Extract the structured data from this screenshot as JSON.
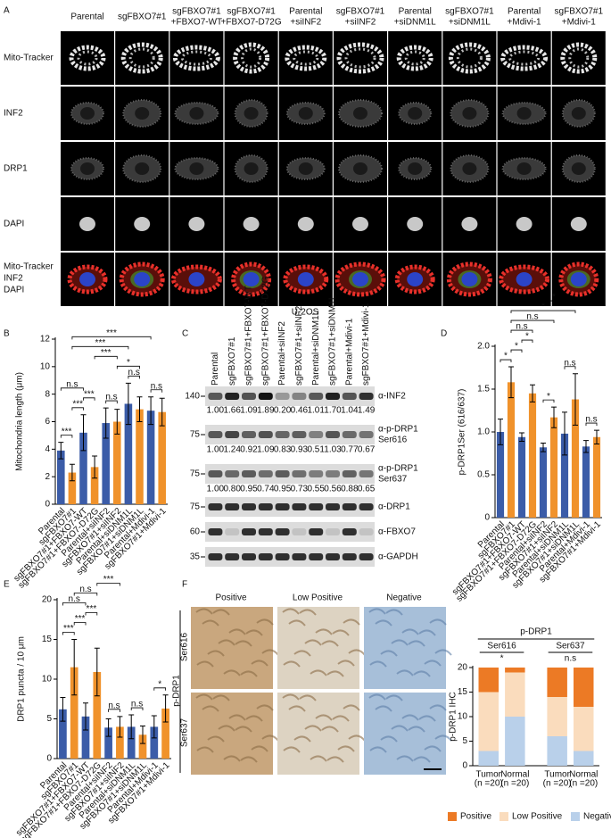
{
  "panels": [
    "A",
    "B",
    "C",
    "D",
    "E",
    "F"
  ],
  "figure_a": {
    "columns": [
      [
        "Parental"
      ],
      [
        "sgFBXO7#1"
      ],
      [
        "sgFBXO7#1",
        "+FBXO7-WT"
      ],
      [
        "sgFBXO7#1",
        "+FBXO7-D72G"
      ],
      [
        "Parental",
        "+siINF2"
      ],
      [
        "sgFBXO7#1",
        "+siINF2"
      ],
      [
        "Parental",
        "+siDNM1L"
      ],
      [
        "sgFBXO7#1",
        "+siDNM1L"
      ],
      [
        "Parental",
        "+Mdivi-1"
      ],
      [
        "sgFBXO7#1",
        "+Mdivi-1"
      ]
    ],
    "rows": [
      "Mito-Tracker",
      "INF2",
      "DRP1",
      "DAPI"
    ],
    "merge_labels": [
      {
        "text": "Mito-Tracker",
        "color": "#e8302a"
      },
      {
        "text": "INF2",
        "color": "#3fa535"
      },
      {
        "text": "DAPI",
        "color": "#2b44c8"
      }
    ],
    "caption": "U-2OS"
  },
  "blot": {
    "lanes": [
      "Parental",
      "sgFBXO7#1",
      "sgFBXO7#1+FBXO7-WT",
      "sgFBXO7#1+FBXO7-D72G",
      "Parental+siINF2",
      "sgFBXO7#1+siINF2",
      "Parental+siDNM1L",
      "sgFBXO7#1+siDNM1L",
      "Parental+Mdivi-1",
      "sgFBXO7#1+Mdivi-1"
    ],
    "rows": [
      {
        "label": [
          "α-INF2"
        ],
        "marker": "140",
        "quant": [
          "1.00",
          "1.66",
          "1.09",
          "1.89",
          "0.20",
          "0.46",
          "1.01",
          "1.70",
          "1.04",
          "1.49"
        ]
      },
      {
        "label": [
          "α-p-DRP1",
          "Ser616"
        ],
        "marker": "75",
        "quant": [
          "1.00",
          "1.24",
          "0.92",
          "1.09",
          "0.83",
          "0.93",
          "0.51",
          "1.03",
          "0.77",
          "0.67"
        ]
      },
      {
        "label": [
          "α-p-DRP1",
          "Ser637"
        ],
        "marker": "75",
        "quant": [
          "1.00",
          "0.80",
          "0.95",
          "0.74",
          "0.95",
          "0.73",
          "0.55",
          "0.56",
          "0.88",
          "0.65"
        ]
      },
      {
        "label": [
          "α-DRP1"
        ],
        "marker": "75"
      },
      {
        "label": [
          "α-FBXO7"
        ],
        "marker": "60"
      },
      {
        "label": [
          "α-GAPDH"
        ],
        "marker": "35"
      }
    ]
  },
  "ihc": {
    "columns": [
      "Positive",
      "Low Positive",
      "Negative"
    ],
    "rows": [
      "Ser616",
      "Ser637"
    ],
    "group": "p-DRP1"
  },
  "chart_data": [
    {
      "type": "bar",
      "ylabel": "Mitochondria length (μm)",
      "categories": [
        "Parental",
        "sgFBXO7#1",
        "sgFBXO7#1+FBXO7-WT",
        "sgFBXO7#1+FBXO7-D72G",
        "Parental+siINF2",
        "sgFBXO7#1+siINF2",
        "Parental+siDNM1L",
        "sgFBXO7#1+siDNM1L",
        "Parental+Mdivi-1",
        "sgFBXO7#1+Mdivi-1"
      ],
      "values": [
        3.9,
        2.3,
        5.2,
        2.7,
        5.9,
        6.0,
        7.3,
        6.9,
        6.8,
        6.7
      ],
      "errors": [
        0.6,
        0.6,
        1.3,
        0.8,
        1.1,
        0.9,
        1.5,
        0.9,
        1.0,
        1.0
      ],
      "bar_colors": [
        "#3b5ca8",
        "#f0922b",
        "#3b5ca8",
        "#f0922b",
        "#3b5ca8",
        "#f0922b",
        "#3b5ca8",
        "#f0922b",
        "#3b5ca8",
        "#f0922b"
      ],
      "ylim": [
        0,
        12
      ],
      "yticks": [
        0,
        2,
        4,
        6,
        8,
        10,
        12
      ],
      "annotations": [
        {
          "text": "***",
          "from": 0,
          "to": 1
        },
        {
          "text": "***",
          "from": 1,
          "to": 2
        },
        {
          "text": "***",
          "from": 2,
          "to": 3
        },
        {
          "text": "n.s",
          "from": 4,
          "to": 5
        },
        {
          "text": "n.s",
          "from": 6,
          "to": 7
        },
        {
          "text": "n.s",
          "from": 8,
          "to": 9
        },
        {
          "text": "n.s",
          "from": 0,
          "to": 2
        },
        {
          "text": "*",
          "from": 5,
          "to": 7
        },
        {
          "text": "***",
          "from": 3,
          "to": 5
        },
        {
          "text": "***",
          "from": 1,
          "to": 6
        },
        {
          "text": "***",
          "from": 1,
          "to": 8
        }
      ]
    },
    {
      "type": "bar",
      "ylabel": "p-DRP1Ser (616/637)",
      "categories": [
        "Parental",
        "sgFBXO7#1",
        "sgFBXO7#1+FBXO7-WT",
        "sgFBXO7#1+FBXO7-D72G",
        "Parental+siINF2",
        "sgFBXO7#1+siINF2",
        "Parental+siDNM1L",
        "sgFBXO7#1+siDNM1L",
        "Parental+Mdivi-1",
        "sgFBXO7#1+Mdivi-1"
      ],
      "values": [
        1.0,
        1.58,
        0.94,
        1.45,
        0.82,
        1.17,
        0.98,
        1.38,
        0.83,
        0.94
      ],
      "errors": [
        0.15,
        0.18,
        0.05,
        0.1,
        0.05,
        0.12,
        0.25,
        0.3,
        0.07,
        0.08
      ],
      "bar_colors": [
        "#3b5ca8",
        "#f0922b",
        "#3b5ca8",
        "#f0922b",
        "#3b5ca8",
        "#f0922b",
        "#3b5ca8",
        "#f0922b",
        "#3b5ca8",
        "#f0922b"
      ],
      "ylim": [
        0,
        2
      ],
      "yticks": [
        0,
        0.5,
        {
          "value": 1,
          "label": "1.0"
        },
        1.5,
        {
          "value": 2,
          "label": "2.0"
        }
      ],
      "annotations": [
        {
          "text": "*",
          "from": 0,
          "to": 1
        },
        {
          "text": "*",
          "from": 1,
          "to": 2
        },
        {
          "text": "*",
          "from": 2,
          "to": 3
        },
        {
          "text": "*",
          "from": 4,
          "to": 5
        },
        {
          "text": "n.s",
          "from": 6,
          "to": 7
        },
        {
          "text": "n.s",
          "from": 8,
          "to": 9
        },
        {
          "text": "n.s",
          "from": 1,
          "to": 3
        },
        {
          "text": "n.s",
          "from": 1,
          "to": 5
        },
        {
          "text": "*",
          "from": 1,
          "to": 7
        },
        {
          "text": "*",
          "from": 1,
          "to": 9
        }
      ]
    },
    {
      "type": "bar",
      "ylabel": "DRP1 puncta / 10 μm",
      "categories": [
        "Parental",
        "sgFBXO7#1",
        "sgFBXO7#1+FBXO7-WT",
        "sgFBXO7#1+FBXO7-D72G",
        "Parental+siINF2",
        "sgFBXO7#1+siINF2",
        "Parental+siDNM1L",
        "sgFBXO7#1+siDNM1L",
        "Parental+Mdivi-1",
        "sgFBXO7#1+Mdivi-1"
      ],
      "values": [
        6.2,
        11.5,
        5.3,
        10.9,
        3.9,
        4.0,
        4.0,
        3.0,
        4.0,
        6.3
      ],
      "errors": [
        1.5,
        3.5,
        1.7,
        3.0,
        1.1,
        1.3,
        1.5,
        1.1,
        1.4,
        1.7
      ],
      "bar_colors": [
        "#3b5ca8",
        "#f0922b",
        "#3b5ca8",
        "#f0922b",
        "#3b5ca8",
        "#f0922b",
        "#3b5ca8",
        "#f0922b",
        "#3b5ca8",
        "#f0922b"
      ],
      "ylim": [
        0,
        20
      ],
      "yticks": [
        0,
        5,
        10,
        15,
        20
      ],
      "annotations": [
        {
          "text": "***",
          "from": 0,
          "to": 1
        },
        {
          "text": "***",
          "from": 1,
          "to": 2
        },
        {
          "text": "***",
          "from": 2,
          "to": 3
        },
        {
          "text": "n.s",
          "from": 4,
          "to": 5
        },
        {
          "text": "n.s",
          "from": 6,
          "to": 7
        },
        {
          "text": "*",
          "from": 8,
          "to": 9
        },
        {
          "text": "n.s",
          "from": 0,
          "to": 2
        },
        {
          "text": "n.s",
          "from": 1,
          "to": 3
        },
        {
          "text": "***",
          "from": 3,
          "to": 5
        }
      ]
    },
    {
      "type": "stacked_bar",
      "title": "p-DRP1",
      "ylabel": "p-DRP1 IHC",
      "categories": [
        "Tumor",
        "Normal",
        "Tumor",
        "Normal"
      ],
      "category_notes": [
        "(n =20)",
        "(n =20)",
        "(n =20)",
        "(n =20)"
      ],
      "groups": [
        {
          "label": "Ser616",
          "from": 0,
          "to": 1,
          "annotation": "*"
        },
        {
          "label": "Ser637",
          "from": 2,
          "to": 3,
          "annotation": "n.s"
        }
      ],
      "series": [
        {
          "name": "Negative",
          "color": "#b9d0ea",
          "values": [
            3,
            10,
            6,
            3
          ]
        },
        {
          "name": "Low Positive",
          "color": "#fadcbd",
          "values": [
            12,
            9,
            8,
            9
          ]
        },
        {
          "name": "Positive",
          "color": "#ec7a25",
          "values": [
            5,
            1,
            6,
            8
          ]
        }
      ],
      "ylim": [
        0,
        20
      ],
      "yticks": [
        0,
        5,
        10,
        15,
        20
      ]
    }
  ]
}
